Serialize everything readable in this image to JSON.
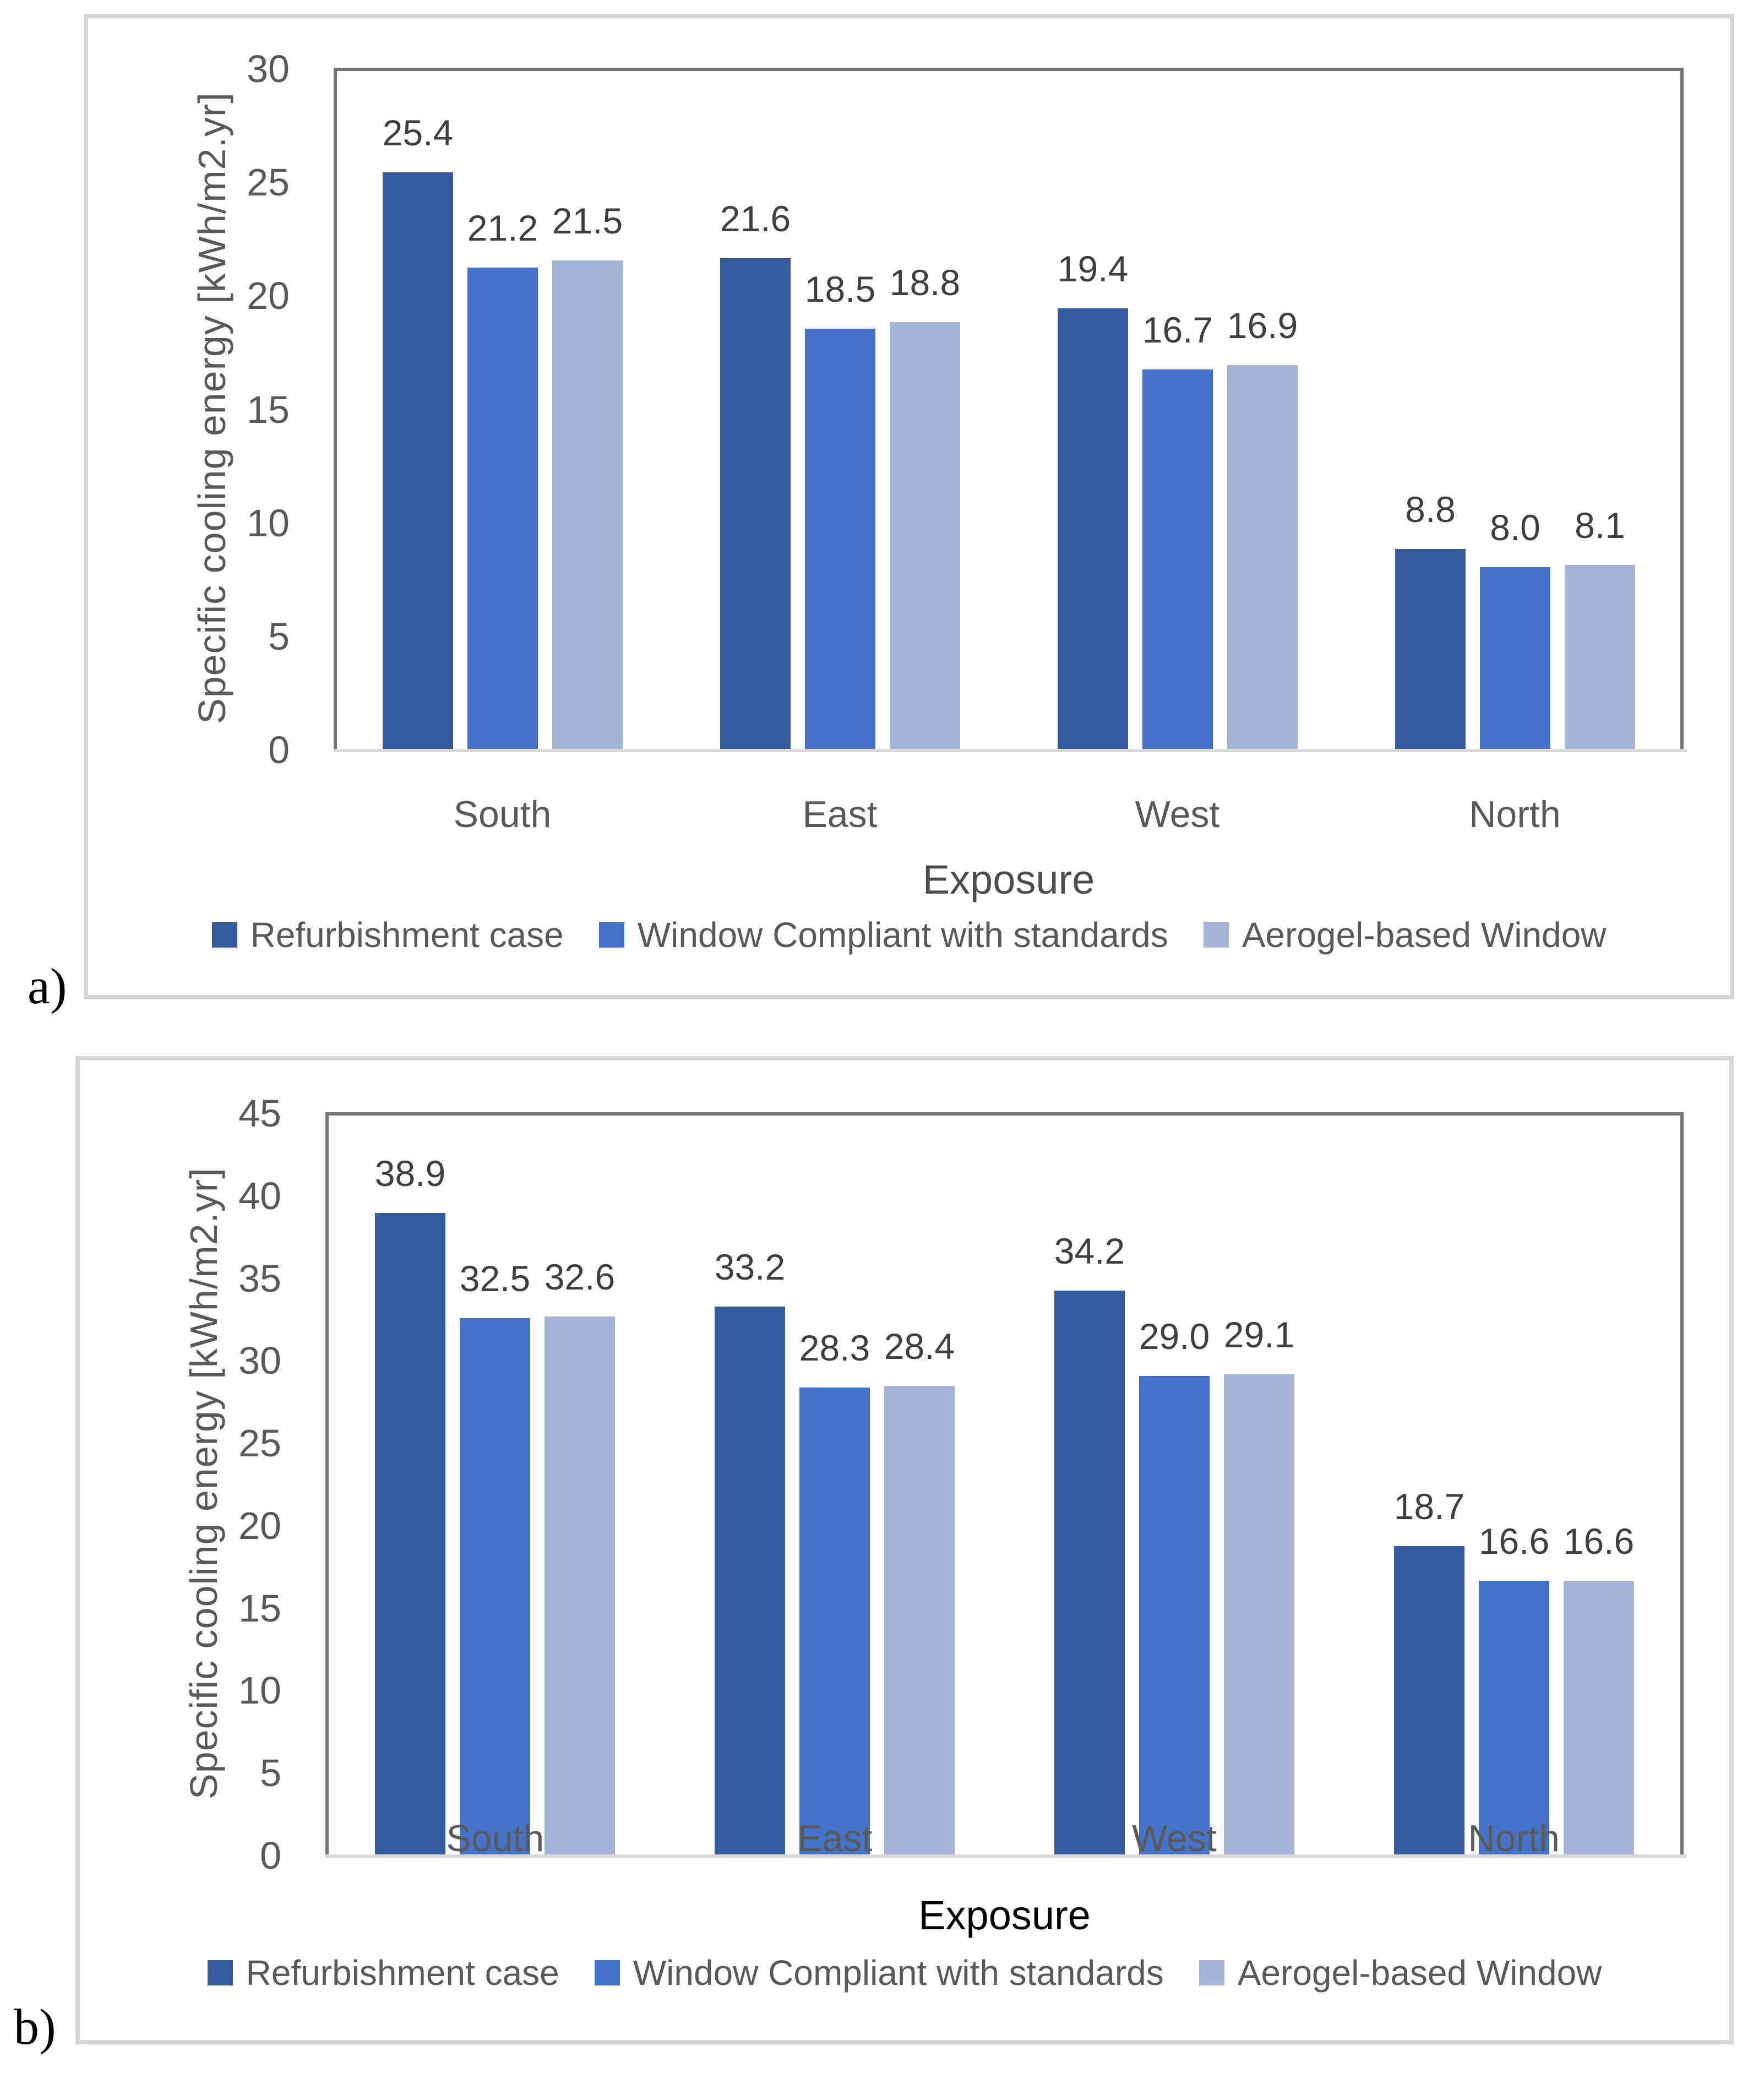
{
  "figure": {
    "panel_a_label": "a)",
    "panel_b_label": "b)",
    "colors": {
      "series_dark_blue": "#355c9e",
      "series_medium_blue": "#4472c6",
      "series_light_blue": "#a6b4da",
      "gridline": "#d9d9d9",
      "plot_border": "#747474",
      "tick_text": "#595959",
      "data_label_text": "#3f3f3f"
    }
  },
  "chart_data": [
    {
      "panel": "a",
      "type": "bar",
      "title": "",
      "xlabel": "Exposure",
      "xlabel_color": "#4d4d4d",
      "ylabel": "Specific cooling energy [kWh/m2.yr]",
      "ylim": [
        0,
        30
      ],
      "ytick_step": 5,
      "grid": true,
      "legend_position": "bottom",
      "categories": [
        "South",
        "East",
        "West",
        "North"
      ],
      "series": [
        {
          "name": "Refurbishment case",
          "color": "#355c9e",
          "values": [
            25.4,
            21.6,
            19.4,
            8.8
          ]
        },
        {
          "name": "Window Compliant with standards",
          "color": "#4472c6",
          "values": [
            21.2,
            18.5,
            16.7,
            8.0
          ]
        },
        {
          "name": "Aerogel-based Window",
          "color": "#a6b4da",
          "values": [
            21.5,
            18.8,
            16.9,
            8.1
          ]
        }
      ]
    },
    {
      "panel": "b",
      "type": "bar",
      "title": "",
      "xlabel": "Exposure",
      "xlabel_color": "#000000",
      "ylabel": "Specific cooling energy [kWh/m2.yr]",
      "ylim": [
        0,
        45
      ],
      "ytick_step": 5,
      "grid": true,
      "legend_position": "bottom",
      "categories": [
        "South",
        "East",
        "West",
        "North"
      ],
      "series": [
        {
          "name": "Refurbishment case",
          "color": "#355c9e",
          "values": [
            38.9,
            33.2,
            34.2,
            18.7
          ]
        },
        {
          "name": "Window Compliant with standards",
          "color": "#4472c6",
          "values": [
            32.5,
            28.3,
            29.0,
            16.6
          ]
        },
        {
          "name": "Aerogel-based Window",
          "color": "#a6b4da",
          "values": [
            32.6,
            28.4,
            29.1,
            16.6
          ]
        }
      ]
    }
  ]
}
